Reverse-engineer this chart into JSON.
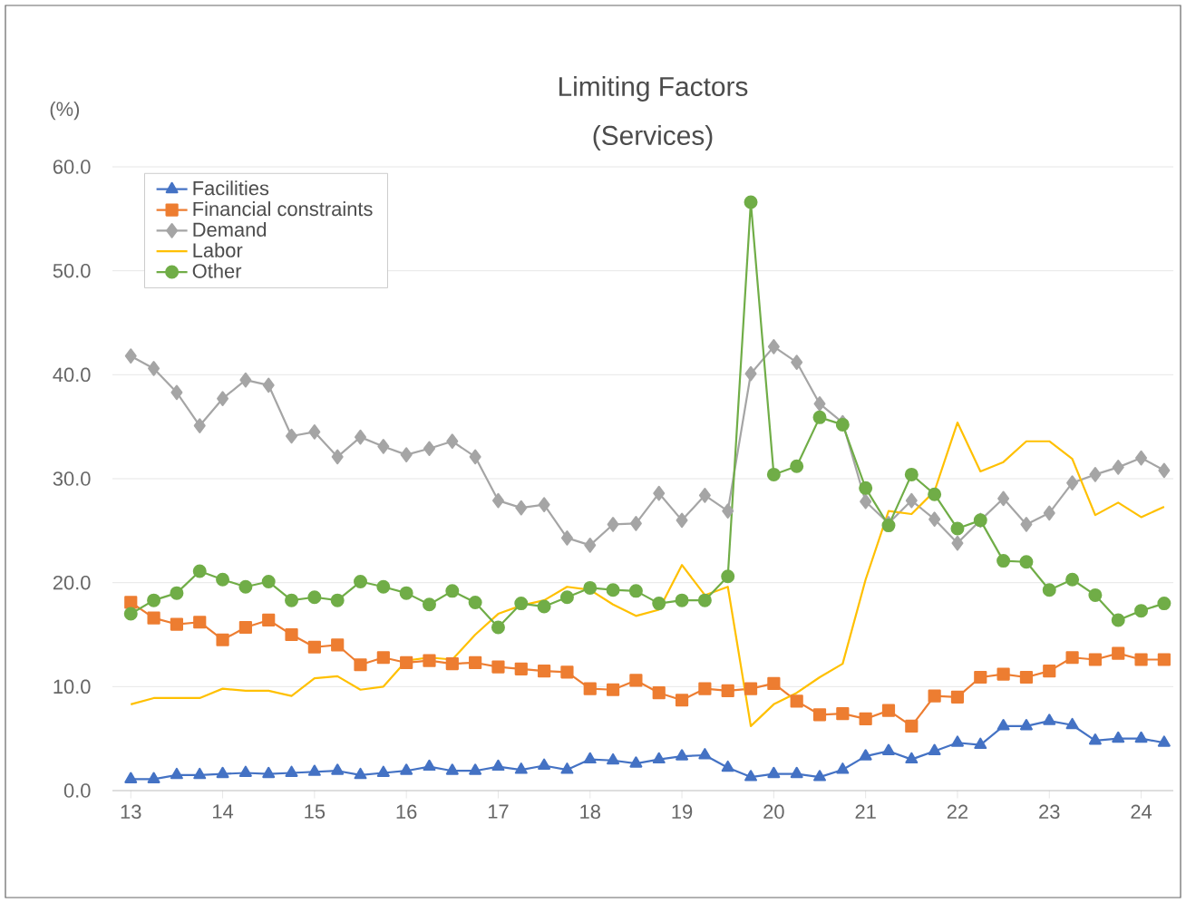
{
  "chart_data": {
    "type": "line",
    "title": "Limiting Factors",
    "subtitle": "(Services)",
    "ylabel": "(%)",
    "x": [
      13,
      13.25,
      13.5,
      13.75,
      14,
      14.25,
      14.5,
      14.75,
      15,
      15.25,
      15.5,
      15.75,
      16,
      16.25,
      16.5,
      16.75,
      17,
      17.25,
      17.5,
      17.75,
      18,
      18.25,
      18.5,
      18.75,
      19,
      19.25,
      19.5,
      19.75,
      20,
      20.25,
      20.5,
      20.75,
      21,
      21.25,
      21.5,
      21.75,
      22,
      22.25,
      22.5,
      22.75,
      23,
      23.25,
      23.5,
      23.75,
      24,
      24.25
    ],
    "series": [
      {
        "name": "Facilities",
        "color": "#4472c4",
        "marker": "triangle",
        "values": [
          1.1,
          1.1,
          1.5,
          1.5,
          1.6,
          1.7,
          1.6,
          1.7,
          1.8,
          1.9,
          1.5,
          1.7,
          1.9,
          2.3,
          1.9,
          1.9,
          2.3,
          2.0,
          2.4,
          2.0,
          3.0,
          2.9,
          2.6,
          3.0,
          3.3,
          3.4,
          2.2,
          1.3,
          1.6,
          1.6,
          1.3,
          2.0,
          3.3,
          3.8,
          3.0,
          3.8,
          4.6,
          4.4,
          6.2,
          6.2,
          6.7,
          6.3,
          4.8,
          5.0,
          5.0,
          4.6
        ]
      },
      {
        "name": "Financial constraints",
        "color": "#ed7d31",
        "marker": "square",
        "values": [
          18.1,
          16.6,
          16.0,
          16.2,
          14.5,
          15.7,
          16.4,
          15.0,
          13.8,
          14.0,
          12.1,
          12.8,
          12.3,
          12.5,
          12.2,
          12.3,
          11.9,
          11.7,
          11.5,
          11.4,
          9.8,
          9.7,
          10.6,
          9.4,
          8.7,
          9.8,
          9.6,
          9.8,
          10.3,
          8.6,
          7.3,
          7.4,
          6.9,
          7.7,
          6.2,
          9.1,
          9.0,
          10.9,
          11.2,
          10.9,
          11.5,
          12.8,
          12.6,
          13.2,
          12.6,
          12.6
        ]
      },
      {
        "name": "Demand",
        "color": "#a5a5a5",
        "marker": "diamond",
        "values": [
          41.8,
          40.6,
          38.3,
          35.1,
          37.7,
          39.5,
          39.0,
          34.1,
          34.5,
          32.1,
          34.0,
          33.1,
          32.3,
          32.9,
          33.6,
          32.1,
          27.9,
          27.2,
          27.5,
          24.3,
          23.6,
          25.6,
          25.7,
          28.6,
          26.0,
          28.4,
          26.9,
          40.1,
          42.7,
          41.2,
          37.2,
          35.4,
          27.8,
          25.7,
          27.9,
          26.1,
          23.8,
          26.0,
          28.1,
          25.6,
          26.7,
          29.6,
          30.4,
          31.1,
          32.0,
          30.8
        ]
      },
      {
        "name": "Labor",
        "color": "#ffc000",
        "marker": "none",
        "values": [
          8.3,
          8.9,
          8.9,
          8.9,
          9.8,
          9.6,
          9.6,
          9.1,
          10.8,
          11.0,
          9.7,
          10.0,
          12.5,
          12.8,
          12.6,
          15.0,
          17.0,
          17.8,
          18.3,
          19.6,
          19.3,
          17.9,
          16.8,
          17.4,
          21.7,
          18.8,
          19.6,
          6.2,
          8.3,
          9.4,
          10.9,
          12.2,
          20.3,
          26.9,
          26.6,
          28.8,
          35.4,
          30.7,
          31.6,
          33.6,
          33.6,
          31.9,
          26.5,
          27.7,
          26.3,
          27.3
        ]
      },
      {
        "name": "Other",
        "color": "#70ad47",
        "marker": "circle",
        "values": [
          17.0,
          18.3,
          19.0,
          21.1,
          20.3,
          19.6,
          20.1,
          18.3,
          18.6,
          18.3,
          20.1,
          19.6,
          19.0,
          17.9,
          19.2,
          18.1,
          15.7,
          18.0,
          17.7,
          18.6,
          19.5,
          19.3,
          19.2,
          18.0,
          18.3,
          18.3,
          20.6,
          56.6,
          30.4,
          31.2,
          35.9,
          35.2,
          29.1,
          25.5,
          30.4,
          28.5,
          25.2,
          26.0,
          22.1,
          22.0,
          19.3,
          20.3,
          18.8,
          16.4,
          17.3,
          18.0
        ]
      }
    ],
    "xlim": [
      12.8,
      24.35
    ],
    "ylim": [
      0,
      60
    ],
    "xticks": [
      13,
      14,
      15,
      16,
      17,
      18,
      19,
      20,
      21,
      22,
      23,
      24
    ],
    "yticks": [
      {
        "value": 0,
        "label": "0.0"
      },
      {
        "value": 10,
        "label": "10.0"
      },
      {
        "value": 20,
        "label": "20.0"
      },
      {
        "value": 30,
        "label": "30.0"
      },
      {
        "value": 40,
        "label": "40.0"
      },
      {
        "value": 50,
        "label": "50.0"
      },
      {
        "value": 60,
        "label": "60.0"
      }
    ],
    "grid": "y",
    "legend": "top left"
  }
}
